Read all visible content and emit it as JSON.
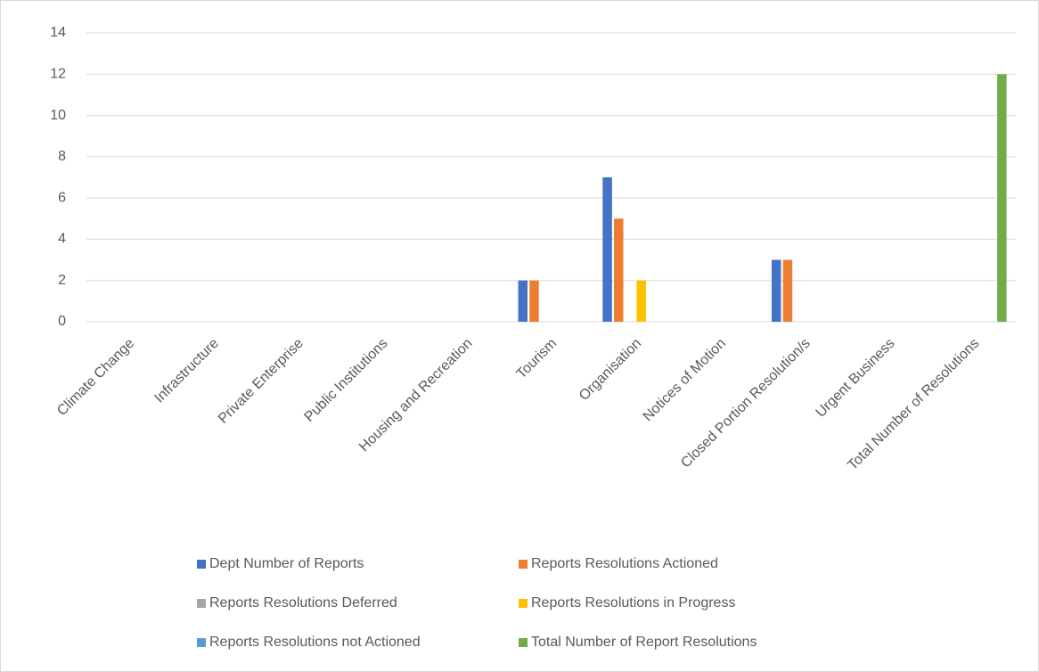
{
  "chart_data": {
    "type": "bar",
    "categories": [
      "Climate Change",
      "Infrastructure",
      "Private Enterprise",
      "Public Institutions",
      "Housing and Recreation",
      "Tourism",
      "Organisation",
      "Notices of Motion",
      "Closed Portion Resolution/s",
      "Urgent Business",
      "Total Number of Resolutions"
    ],
    "series": [
      {
        "name": "Dept Number of Reports",
        "color": "#4472c4",
        "values": [
          0,
          0,
          0,
          0,
          0,
          2,
          7,
          0,
          3,
          0,
          0
        ]
      },
      {
        "name": "Reports Resolutions Actioned",
        "color": "#ed7d31",
        "values": [
          0,
          0,
          0,
          0,
          0,
          2,
          5,
          0,
          3,
          0,
          0
        ]
      },
      {
        "name": "Reports Resolutions Deferred",
        "color": "#a5a5a5",
        "values": [
          0,
          0,
          0,
          0,
          0,
          0,
          0,
          0,
          0,
          0,
          0
        ]
      },
      {
        "name": "Reports Resolutions in Progress",
        "color": "#ffc000",
        "values": [
          0,
          0,
          0,
          0,
          0,
          0,
          2,
          0,
          0,
          0,
          0
        ]
      },
      {
        "name": "Reports Resolutions not Actioned",
        "color": "#5b9bd5",
        "values": [
          0,
          0,
          0,
          0,
          0,
          0,
          0,
          0,
          0,
          0,
          0
        ]
      },
      {
        "name": "Total Number of Report Resolutions",
        "color": "#70ad47",
        "values": [
          0,
          0,
          0,
          0,
          0,
          0,
          0,
          0,
          0,
          0,
          12
        ]
      }
    ],
    "ylim": [
      0,
      14
    ],
    "yticks": [
      0,
      2,
      4,
      6,
      8,
      10,
      12,
      14
    ],
    "grid": true,
    "legend": "bottom"
  }
}
